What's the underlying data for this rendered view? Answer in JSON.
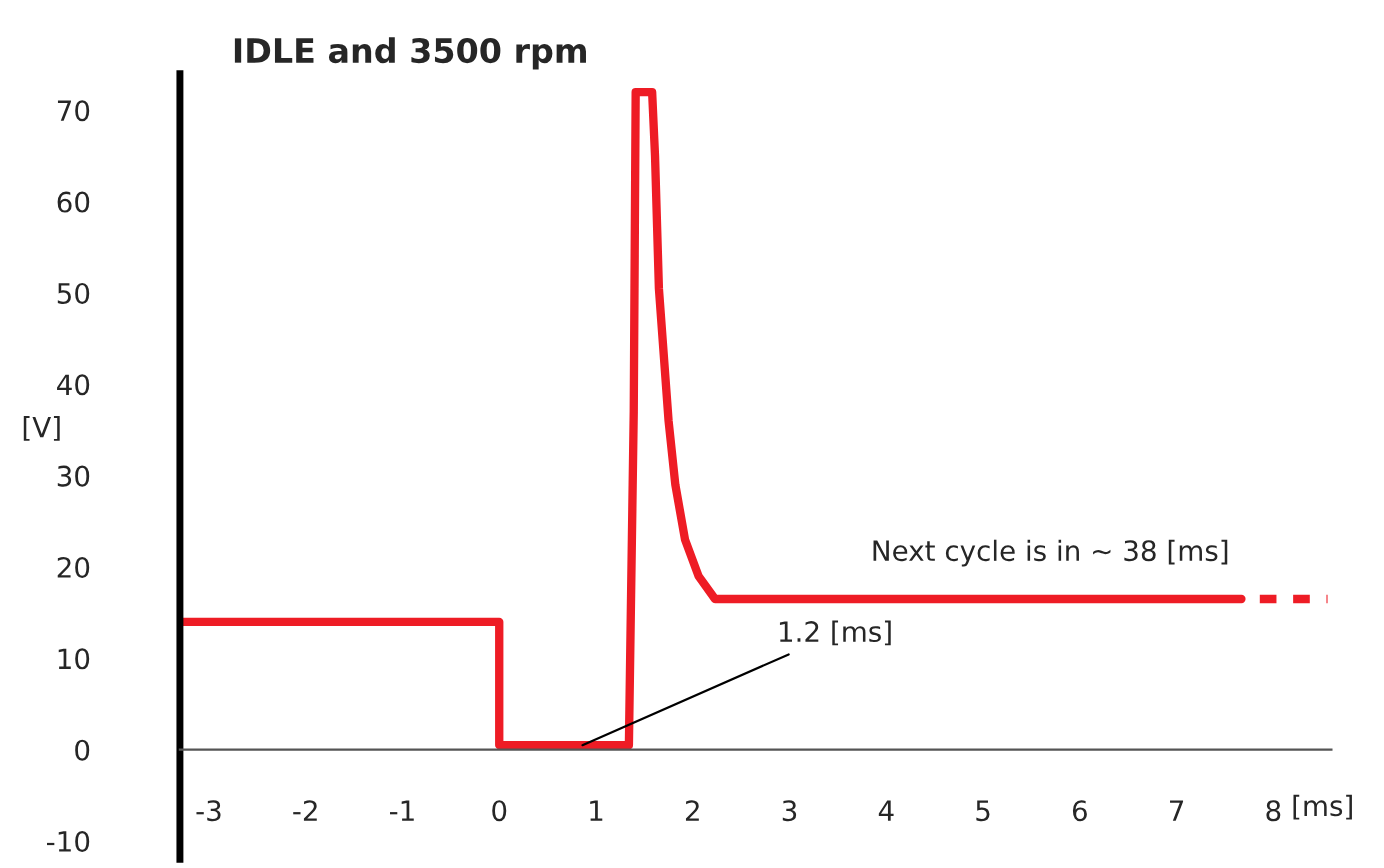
{
  "chart_data": {
    "type": "line",
    "title": "IDLE and 3500 rpm",
    "xlabel": "[ms]",
    "ylabel": "[V]",
    "series": [
      {
        "color": "#ee1c25",
        "line_style": "solid",
        "x": [
          -3.3,
          0,
          0,
          1.34,
          1.39,
          1.41,
          1.58,
          1.61,
          1.65,
          1.75,
          1.82,
          1.92,
          2.06,
          2.23,
          7.67
        ],
        "values": [
          14,
          14,
          0.5,
          0.5,
          37,
          72,
          72,
          65,
          50.5,
          36,
          29,
          23,
          19,
          16.5,
          16.5
        ]
      },
      {
        "color": "#ee1c25",
        "line_style": "dashed",
        "x": [
          7.86,
          8.56
        ],
        "values": [
          16.5,
          16.5
        ]
      }
    ],
    "annotations": [
      {
        "text": "1.2 [ms]",
        "x": 0.86,
        "y": 0.5
      },
      "Next cycle is in ~ 38 [ms]"
    ],
    "xlim": [
      -3.3,
      8.6
    ],
    "ylim": [
      -12,
      74
    ],
    "xticks": [
      -3,
      -2,
      -1,
      0,
      1,
      2,
      3,
      4,
      5,
      6,
      7,
      8
    ],
    "yticks": [
      -10,
      0,
      10,
      20,
      30,
      40,
      50,
      60,
      70
    ],
    "grid": false,
    "marker": "none"
  }
}
